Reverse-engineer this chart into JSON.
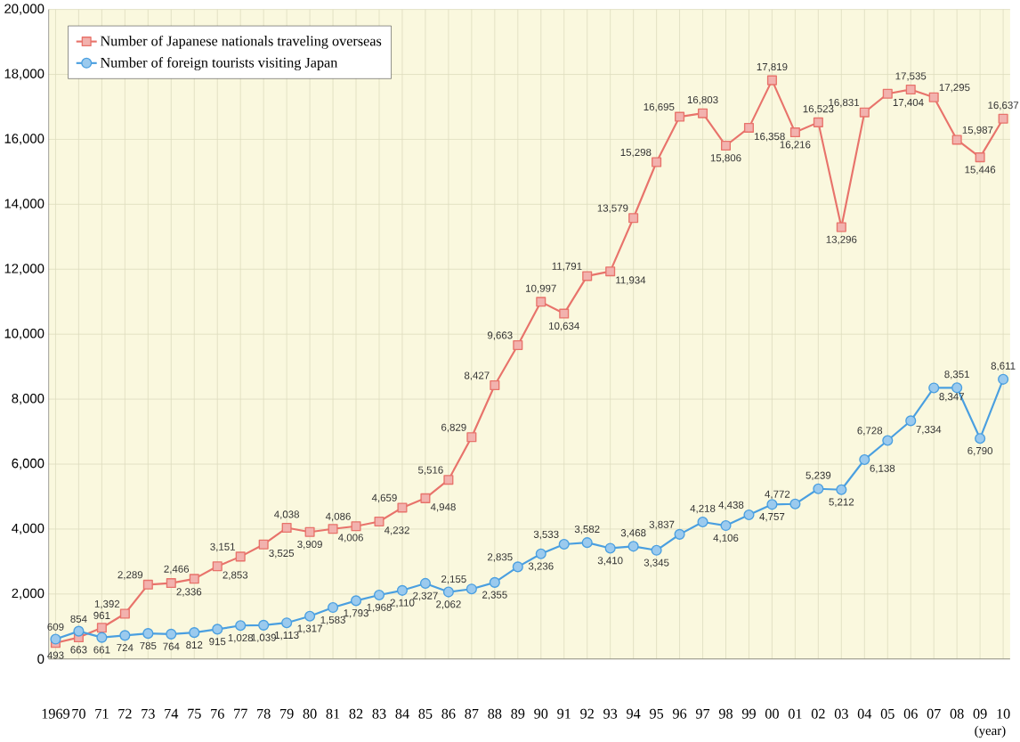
{
  "chart_data": {
    "type": "line",
    "xlabel": "(year)",
    "categories": [
      "1969",
      "70",
      "71",
      "72",
      "73",
      "74",
      "75",
      "76",
      "77",
      "78",
      "79",
      "80",
      "81",
      "82",
      "83",
      "84",
      "85",
      "86",
      "87",
      "88",
      "89",
      "90",
      "91",
      "92",
      "93",
      "94",
      "95",
      "96",
      "97",
      "98",
      "99",
      "00",
      "01",
      "02",
      "03",
      "04",
      "05",
      "06",
      "07",
      "08",
      "09",
      "10"
    ],
    "ylim": [
      0,
      20000
    ],
    "yticks": [
      0,
      {
        "value": 2000,
        "label": "2,000"
      },
      {
        "value": 4000,
        "label": "4,000"
      },
      {
        "value": 6000,
        "label": "6,000"
      },
      {
        "value": 8000,
        "label": "8,000"
      },
      {
        "value": 10000,
        "label": "10,000"
      },
      {
        "value": 12000,
        "label": "12,000"
      },
      {
        "value": 14000,
        "label": "14,000"
      },
      {
        "value": 16000,
        "label": "16,000"
      },
      {
        "value": 18000,
        "label": "18,000"
      },
      {
        "value": 20000,
        "label": "20,000"
      }
    ],
    "grid": true,
    "legend": "top left",
    "series": [
      {
        "name": "Number of Japanese nationals traveling overseas",
        "color": "#e8736b",
        "marker": "square",
        "values": [
          493,
          663,
          961,
          1392,
          2289,
          2336,
          2466,
          2853,
          3151,
          3525,
          4038,
          3909,
          4006,
          4086,
          4232,
          4659,
          4948,
          5516,
          6829,
          8427,
          9663,
          10997,
          10634,
          11791,
          11934,
          13579,
          15298,
          16695,
          16803,
          15806,
          16358,
          17819,
          16216,
          16523,
          13296,
          16831,
          17404,
          17535,
          17295,
          15987,
          15446,
          16637
        ],
        "value_labels": [
          "493",
          "663",
          "961",
          "1,392",
          "2,289",
          "2,336",
          "2,466",
          "2,853",
          "3,151",
          "3,525",
          "4,038",
          "3,909",
          "4,006",
          "4,086",
          "4,232",
          "4,659",
          "4,948",
          "5,516",
          "6,829",
          "8,427",
          "9,663",
          "10,997",
          "10,634",
          "11,791",
          "11,934",
          "13,579",
          "15,298",
          "16,695",
          "16,803",
          "15,806",
          "16,358",
          "17,819",
          "16,216",
          "16,523",
          "13,296",
          "16,831",
          "17,404",
          "17,535",
          "17,295",
          "15,987",
          "15,446",
          "16,637"
        ]
      },
      {
        "name": "Number of foreign tourists visiting Japan",
        "color": "#4a9fe0",
        "marker": "circle",
        "values": [
          609,
          854,
          661,
          724,
          785,
          764,
          812,
          915,
          1028,
          1039,
          1113,
          1317,
          1583,
          1793,
          1968,
          2110,
          2327,
          2062,
          2155,
          2355,
          2835,
          3236,
          3533,
          3582,
          3410,
          3468,
          3345,
          3837,
          4218,
          4106,
          4438,
          4757,
          4772,
          5239,
          5212,
          6138,
          6728,
          7334,
          8347,
          8351,
          6790,
          8611
        ],
        "value_labels": [
          "609",
          "854",
          "661",
          "724",
          "785",
          "764",
          "812",
          "915",
          "1,028",
          "1,039",
          "1,113",
          "1,317",
          "1,583",
          "1,793",
          "1,968",
          "2,110",
          "2,327",
          "2,062",
          "2,155",
          "2,355",
          "2,835",
          "3,236",
          "3,533",
          "3,582",
          "3,410",
          "3,468",
          "3,345",
          "3,837",
          "4,218",
          "4,106",
          "4,438",
          "4,757",
          "4,772",
          "5,239",
          "5,212",
          "6,138",
          "6,728",
          "7,334",
          "8,347",
          "8,351",
          "6,790",
          "8,611"
        ]
      }
    ]
  }
}
